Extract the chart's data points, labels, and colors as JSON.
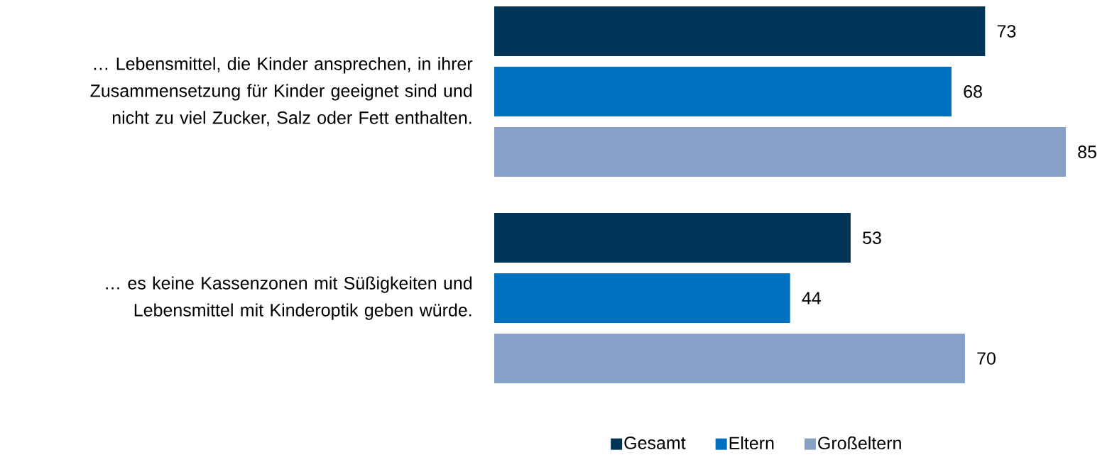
{
  "chart_data": {
    "type": "bar",
    "orientation": "horizontal",
    "categories": [
      "… Lebensmittel, die Kinder ansprechen, in ihrer Zusammensetzung für Kinder geeignet sind und nicht zu viel Zucker, Salz oder Fett enthalten.",
      "… es keine Kassenzonen mit Süßigkeiten und Lebensmittel mit Kinderoptik geben würde."
    ],
    "series": [
      {
        "name": "Gesamt",
        "color": "#003557",
        "values": [
          73,
          53
        ]
      },
      {
        "name": "Eltern",
        "color": "#0070c0",
        "values": [
          68,
          44
        ]
      },
      {
        "name": "Großeltern",
        "color": "#87a0c7",
        "values": [
          85,
          70
        ]
      }
    ],
    "data_labels": true,
    "legend": "bottom",
    "tick_labels": "y"
  }
}
